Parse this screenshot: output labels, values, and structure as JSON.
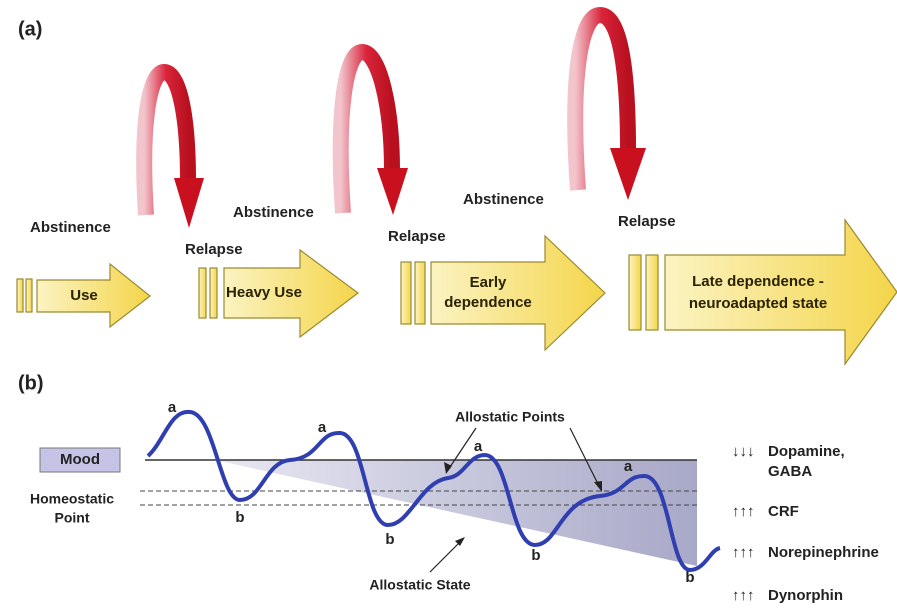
{
  "part_a": {
    "label": "(a)",
    "stages": [
      {
        "lines": [
          "Use"
        ]
      },
      {
        "lines": [
          "Heavy Use"
        ]
      },
      {
        "lines": [
          "Early",
          "dependence"
        ]
      },
      {
        "lines": [
          "Late dependence -",
          "neuroadapted state"
        ]
      }
    ],
    "cycles": [
      {
        "abstinence": "Abstinence",
        "relapse": "Relapse"
      },
      {
        "abstinence": "Abstinence",
        "relapse": "Relapse"
      },
      {
        "abstinence": "Abstinence",
        "relapse": "Relapse"
      }
    ]
  },
  "part_b": {
    "label": "(b)",
    "mood": "Mood",
    "homeostatic_point": [
      "Homeostatic",
      "Point"
    ],
    "allostatic_points": "Allostatic Points",
    "allostatic_state": "Allostatic State",
    "peaks": [
      "a",
      "a",
      "a",
      "a"
    ],
    "troughs": [
      "b",
      "b",
      "b",
      "b"
    ],
    "neurochemicals": [
      {
        "change": "↓↓↓",
        "lines": [
          "Dopamine,",
          "GABA"
        ]
      },
      {
        "change": "↑↑↑",
        "lines": [
          "CRF"
        ]
      },
      {
        "change": "↑↑↑",
        "lines": [
          "Norepinephrine"
        ]
      },
      {
        "change": "↑↑↑",
        "lines": [
          "Dynorphin"
        ]
      }
    ]
  }
}
